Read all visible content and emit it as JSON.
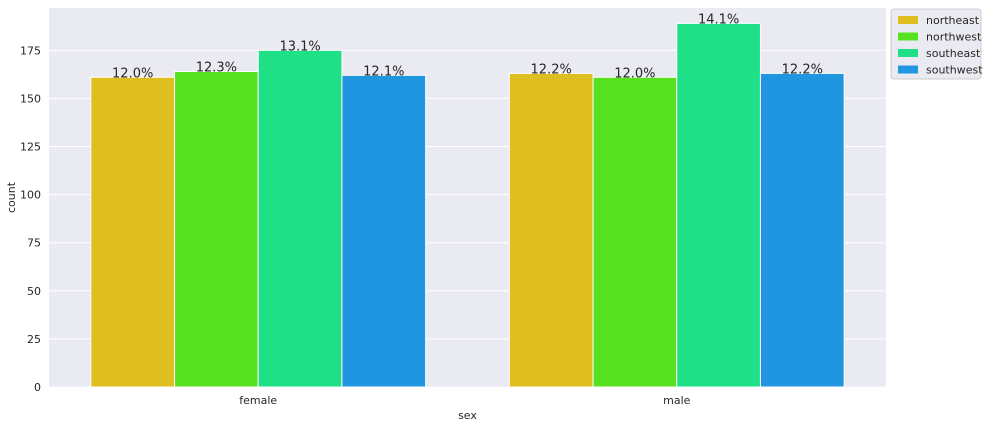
{
  "chart_data": {
    "type": "bar",
    "xlabel": "sex",
    "ylabel": "count",
    "categories": [
      "female",
      "male"
    ],
    "ylim": [
      0,
      197
    ],
    "yticks": [
      0,
      25,
      50,
      75,
      100,
      125,
      150,
      175
    ],
    "grid": true,
    "legend_position": "top-right, outside plot",
    "series": [
      {
        "name": "northeast",
        "color": "#DFBF1F",
        "values": [
          161,
          163
        ],
        "labels": [
          "12.0%",
          "12.2%"
        ]
      },
      {
        "name": "northwest",
        "color": "#58E121",
        "values": [
          164,
          161
        ],
        "labels": [
          "12.3%",
          "12.0%"
        ]
      },
      {
        "name": "southeast",
        "color": "#1FE086",
        "values": [
          175,
          189
        ],
        "labels": [
          "13.1%",
          "14.1%"
        ]
      },
      {
        "name": "southwest",
        "color": "#1F96DF",
        "values": [
          162,
          163
        ],
        "labels": [
          "12.1%",
          "12.2%"
        ]
      }
    ]
  },
  "style": {
    "plot_background": "#EAEAF2",
    "grid_color": "#FFFFFF"
  }
}
